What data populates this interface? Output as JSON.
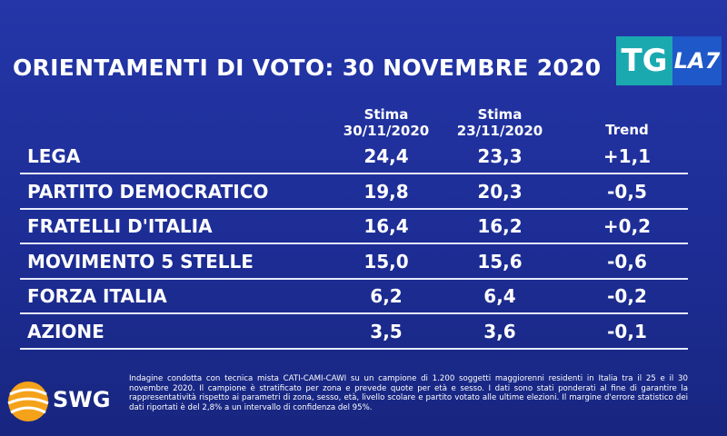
{
  "header": {
    "title": "ORIENTAMENTI DI VOTO: 30 NOVEMBRE 2020",
    "logo": {
      "tg": "TG",
      "la7": "LA7"
    }
  },
  "table": {
    "columns": [
      {
        "line1": "Stima",
        "line2": "30/11/2020"
      },
      {
        "line1": "Stima",
        "line2": "23/11/2020"
      },
      {
        "line1": "Trend"
      }
    ],
    "rows": [
      [
        "LEGA",
        "24,4",
        "23,3",
        "+1,1"
      ],
      [
        "PARTITO DEMOCRATICO",
        "19,8",
        "20,3",
        "-0,5"
      ],
      [
        "FRATELLI D'ITALIA",
        "16,4",
        "16,2",
        "+0,2"
      ],
      [
        "MOVIMENTO 5 STELLE",
        "15,0",
        "15,6",
        "-0,6"
      ],
      [
        "FORZA ITALIA",
        "6,2",
        "6,4",
        "-0,2"
      ],
      [
        "AZIONE",
        "3,5",
        "3,6",
        "-0,1"
      ]
    ]
  },
  "footer": {
    "brand": "SWG",
    "note": "Indagine condotta con tecnica mista CATI-CAMI-CAWI su un campione di 1.200 soggetti maggiorenni residenti in Italia tra il 25 e il 30 novembre 2020. Il campione è stratificato per zona e prevede quote per età e sesso. I dati sono stati ponderati al fine di garantire la rappresentatività rispetto ai parametri di zona, sesso, età, livello scolare e partito votato alle ultime elezioni. Il margine d'errore statistico dei dati riportati è del 2,8% a un intervallo di confidenza del 95%."
  }
}
